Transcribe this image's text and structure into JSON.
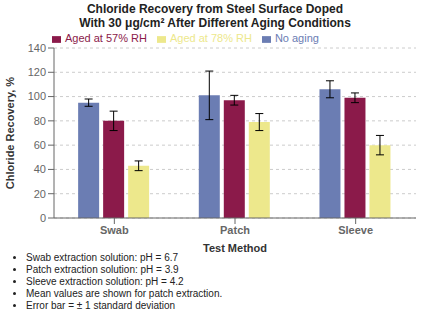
{
  "chart_data": {
    "type": "bar",
    "title": "Chloride Recovery from Steel Surface Doped\nWith 30 μg/cm² After Different Aging Conditions",
    "xlabel": "Test Method",
    "ylabel": "Chloride Recovery, %",
    "categories": [
      "Swab",
      "Patch",
      "Sleeve"
    ],
    "series": [
      {
        "name": "No aging",
        "color": "#6B7DB3",
        "values": [
          95,
          101,
          106
        ],
        "errors": [
          3,
          20,
          7
        ]
      },
      {
        "name": "Aged at 57% RH",
        "color": "#8B1A4A",
        "values": [
          80,
          97,
          99
        ],
        "errors": [
          8,
          4,
          4
        ]
      },
      {
        "name": "Aged at 78% RH",
        "color": "#EDE88C",
        "values": [
          43,
          79,
          60
        ],
        "errors": [
          4,
          7,
          8
        ]
      }
    ],
    "ylim": [
      0,
      140
    ],
    "yticks": [
      0,
      20,
      40,
      60,
      80,
      100,
      120,
      140
    ],
    "grid": true,
    "legend": "upper left",
    "annotations": [
      "Swab extraction solution: pH = 6.7",
      "Patch extraction solution: pH = 3.9",
      "Sleeve extraction solution: pH = 4.2",
      "Mean values are shown for patch extraction.",
      "Error bar = ± 1 standard deviation"
    ]
  }
}
